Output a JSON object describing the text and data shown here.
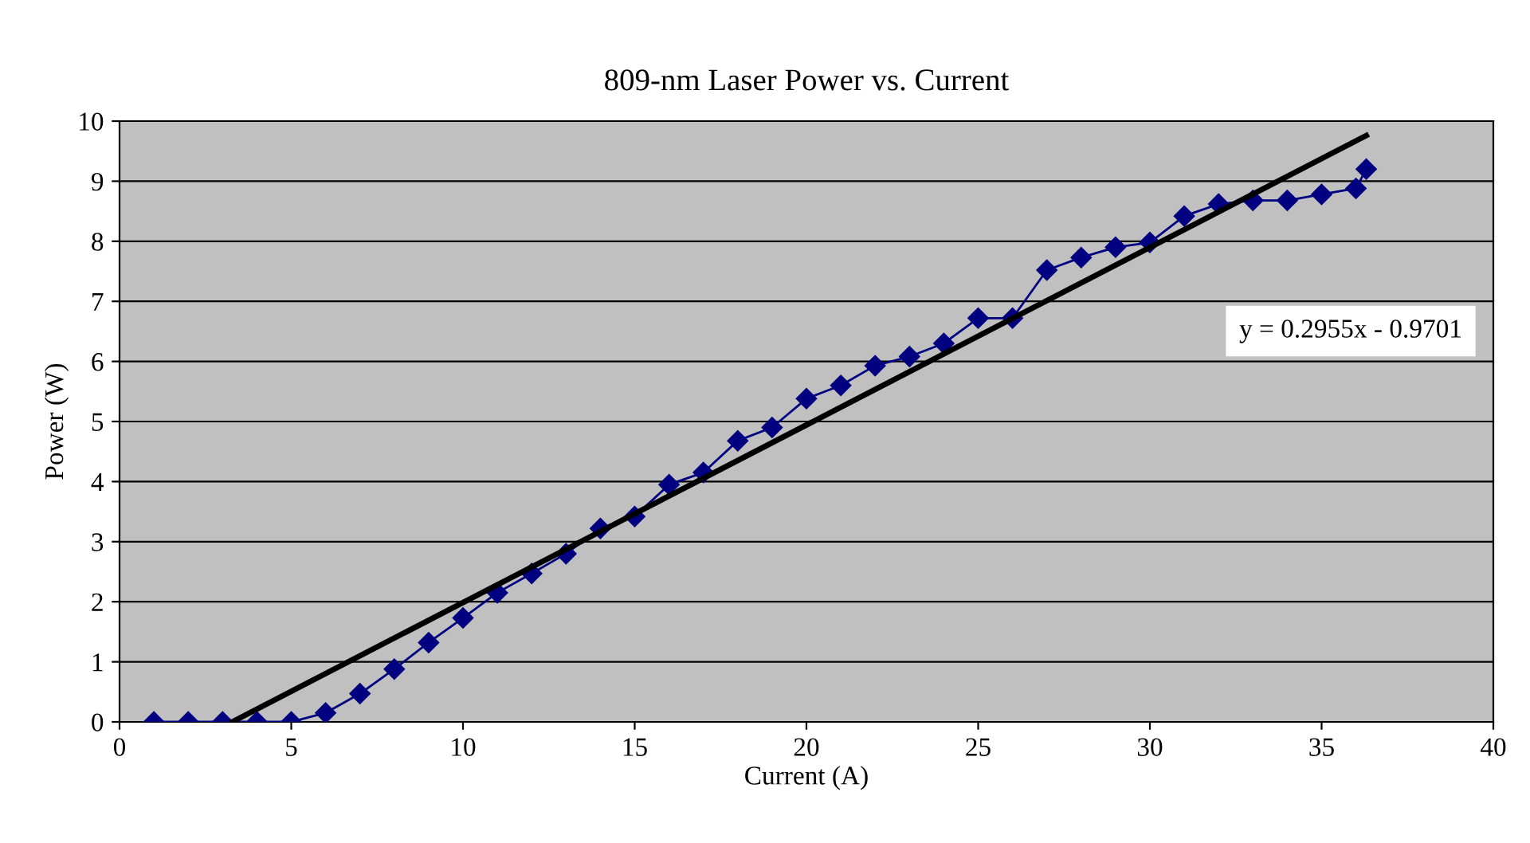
{
  "chart_data": {
    "type": "line",
    "title": "809-nm Laser Power vs. Current",
    "xlabel": "Current (A)",
    "ylabel": "Power (W)",
    "series": [
      {
        "color": "#000080",
        "marker": "diamond",
        "x": [
          1,
          2,
          3,
          4,
          5,
          6,
          7,
          8,
          9,
          10,
          11,
          12,
          13,
          14,
          15,
          16,
          17,
          18,
          19,
          20,
          21,
          22,
          23,
          24,
          25,
          26,
          27,
          28,
          29,
          30,
          31,
          32,
          33,
          34,
          35,
          36,
          36.3
        ],
        "values": [
          0,
          0,
          0,
          0,
          0,
          0.15,
          0.47,
          0.88,
          1.32,
          1.73,
          2.15,
          2.47,
          2.8,
          3.22,
          3.42,
          3.95,
          4.15,
          4.68,
          4.9,
          5.38,
          5.6,
          5.93,
          6.08,
          6.3,
          6.72,
          6.72,
          7.52,
          7.73,
          7.9,
          7.98,
          8.42,
          8.62,
          8.68,
          8.68,
          8.78,
          8.88,
          9.2
        ]
      },
      {
        "type": "line",
        "color": "#000000",
        "marker": "none",
        "x": [
          3.28,
          36.3
        ],
        "values": [
          0,
          9.76
        ]
      }
    ],
    "annotations": [
      "y = 0.2955x - 0.9701"
    ],
    "xlim": [
      0,
      40
    ],
    "xticks": [
      0,
      5,
      10,
      15,
      20,
      25,
      30,
      35,
      40
    ],
    "ylim": [
      0,
      10
    ],
    "yticks": [
      0,
      1,
      2,
      3,
      4,
      5,
      6,
      7,
      8,
      9,
      10
    ],
    "grid": "y"
  }
}
